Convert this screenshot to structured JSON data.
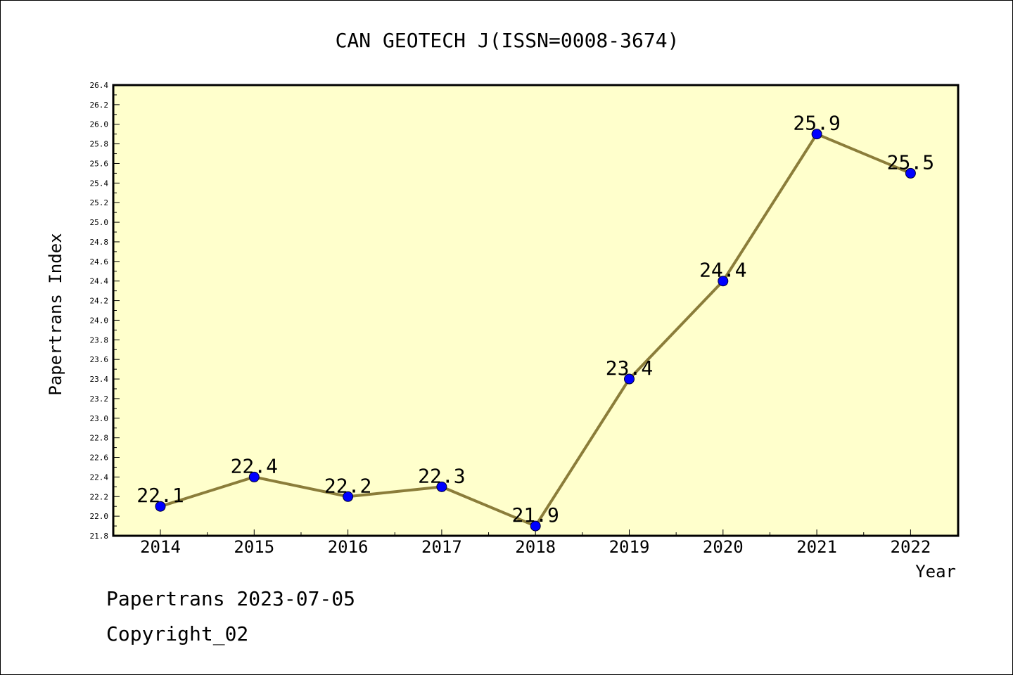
{
  "chart_data": {
    "type": "line",
    "title": "CAN GEOTECH J(ISSN=0008-3674)",
    "xlabel": "Year",
    "ylabel": "Papertrans Index",
    "x": [
      "2014",
      "2015",
      "2016",
      "2017",
      "2018",
      "2019",
      "2020",
      "2021",
      "2022"
    ],
    "series": [
      {
        "values": [
          22.1,
          22.4,
          22.2,
          22.3,
          21.9,
          23.4,
          24.4,
          25.9,
          25.5
        ],
        "labels": [
          "22.1",
          "22.4",
          "22.2",
          "22.3",
          "21.9",
          "23.4",
          "24.4",
          "25.9",
          "25.5"
        ]
      }
    ],
    "ylim": [
      21.8,
      26.4
    ],
    "yticks": [
      "21.8",
      "22.0",
      "22.2",
      "22.4",
      "22.6",
      "22.8",
      "23.0",
      "23.2",
      "23.4",
      "23.6",
      "23.8",
      "24.0",
      "24.2",
      "24.4",
      "24.6",
      "24.8",
      "25.0",
      "25.2",
      "25.4",
      "25.6",
      "25.8",
      "26.0",
      "26.2",
      "26.4"
    ],
    "grid": false,
    "colors": {
      "plot_background": "#ffffcc",
      "line": "#8b7d3a",
      "marker": "#0000ff"
    }
  },
  "footer": {
    "line1": "Papertrans 2023-07-05",
    "line2": "Copyright_02"
  }
}
